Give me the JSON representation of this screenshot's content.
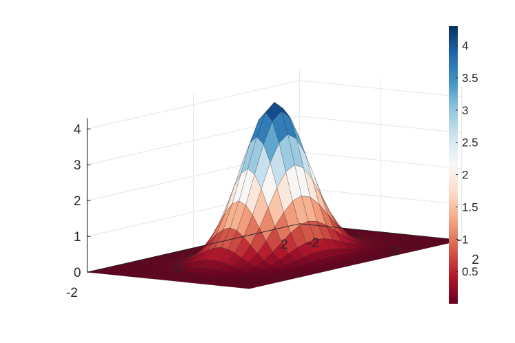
{
  "chart_data": {
    "type": "surface",
    "function": "z = 4.3 * exp(-(x^2 + y^2) / 0.5)",
    "x": [
      -2,
      2
    ],
    "y": [
      -2,
      2
    ],
    "zlim": [
      0,
      4.3
    ],
    "x_ticks": [
      "-2",
      "0",
      "2"
    ],
    "y_ticks": [
      "-2",
      "0",
      "2"
    ],
    "z_ticks": [
      "0",
      "1",
      "2",
      "3",
      "4"
    ],
    "colorbar": {
      "min": 0,
      "max": 4.3,
      "ticks": [
        "0.5",
        "1",
        "1.5",
        "2",
        "2.5",
        "3",
        "3.5",
        "4"
      ],
      "colormap": [
        "#67001f",
        "#b2182b",
        "#d6604d",
        "#f4a582",
        "#fddbc7",
        "#f7f7f7",
        "#d1e5f0",
        "#92c5de",
        "#4393c3",
        "#2166ac",
        "#053061"
      ]
    },
    "grid": true,
    "title": "",
    "xlabel": "",
    "ylabel": "",
    "zlabel": ""
  }
}
